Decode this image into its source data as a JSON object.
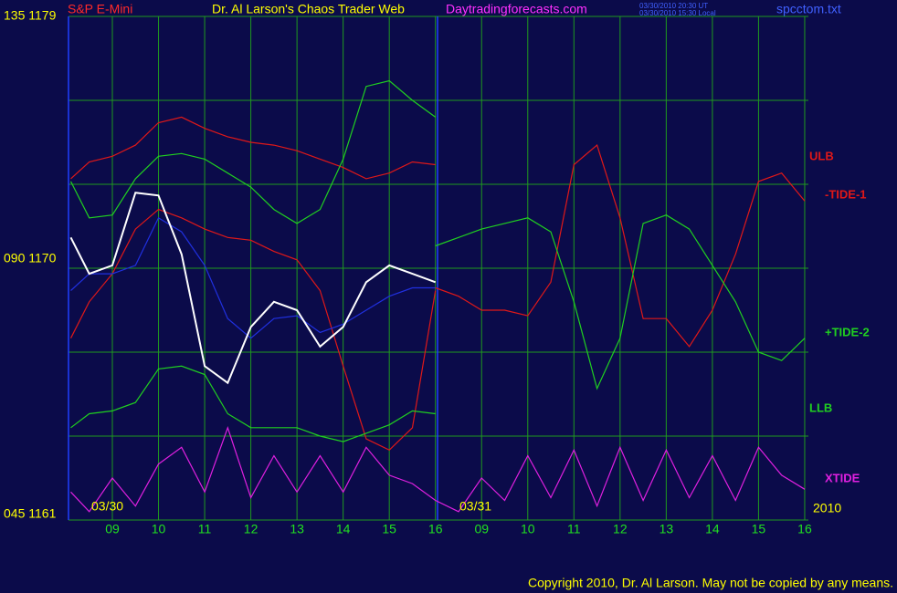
{
  "chart_data": {
    "type": "line",
    "title": "Dr. Al Larson's Chaos Trader Web",
    "site": "Daytradingforecasts.com",
    "symbol": "S&P E-Mini",
    "file": "spcctom.txt",
    "timestamps": [
      "03/30/2010 20:30 UT",
      "03/30/2010 15:30 Local"
    ],
    "day_labels": [
      "03/30",
      "03/31",
      "2010"
    ],
    "copyright": "Copyright 2010, Dr. Al Larson. May not be copied by any means.",
    "background": "#0b0b4a",
    "grid_color": "#1f9a1f",
    "grid": true,
    "xlim": [
      0.05,
      16.08
    ],
    "xticks": [
      {
        "value": 1,
        "label": "09"
      },
      {
        "value": 2,
        "label": "10"
      },
      {
        "value": 3,
        "label": "11"
      },
      {
        "value": 4,
        "label": "12"
      },
      {
        "value": 5,
        "label": "13"
      },
      {
        "value": 6,
        "label": "14"
      },
      {
        "value": 7,
        "label": "15"
      },
      {
        "value": 8,
        "label": "16"
      },
      {
        "value": 9,
        "label": "09"
      },
      {
        "value": 10,
        "label": "10"
      },
      {
        "value": 11,
        "label": "11"
      },
      {
        "value": 12,
        "label": "12"
      },
      {
        "value": 13,
        "label": "13"
      },
      {
        "value": 14,
        "label": "14"
      },
      {
        "value": 15,
        "label": "15"
      },
      {
        "value": 16,
        "label": "16"
      }
    ],
    "ylim": [
      1161,
      1179
    ],
    "yticks": [
      {
        "value": 1179,
        "label": "135 1179"
      },
      {
        "value": 1170,
        "label": "090 1170"
      },
      {
        "value": 1161,
        "label": "045 1161"
      }
    ],
    "ygrid": [
      1164,
      1167,
      1173,
      1176
    ],
    "x": [
      0.1,
      0.5,
      1,
      1.5,
      2,
      2.5,
      3,
      3.5,
      4,
      4.5,
      5,
      5.5,
      6,
      6.5,
      7,
      7.5,
      8,
      8.5,
      9,
      9.5,
      10,
      10.5,
      11,
      11.5,
      12,
      12.5,
      13,
      13.5,
      14,
      14.5,
      15,
      15.5,
      16
    ],
    "series": [
      {
        "name": "ULB",
        "color": "#e01818",
        "values": [
          1173.2,
          1173.8,
          1174.0,
          1174.4,
          1175.2,
          1175.4,
          1175.0,
          1174.7,
          1174.5,
          1174.4,
          1174.2,
          1173.9,
          1173.6,
          1173.2,
          1173.4,
          1173.8,
          1173.7,
          null,
          null,
          null,
          null,
          null,
          null,
          null,
          null,
          null,
          null,
          null,
          null,
          null,
          null,
          null,
          null
        ]
      },
      {
        "color": "#20d020",
        "values": [
          1173.1,
          1171.8,
          1171.9,
          1173.2,
          1174.0,
          1174.1,
          1173.9,
          1173.4,
          1172.9,
          1172.1,
          1171.6,
          1172.1,
          1173.9,
          1176.5,
          1176.7,
          1176.0,
          1175.4,
          null,
          null,
          null,
          null,
          null,
          null,
          null,
          null,
          null,
          null,
          null,
          null,
          null,
          null,
          null,
          null
        ]
      },
      {
        "color": "#e01818",
        "values": [
          1167.5,
          1168.8,
          1169.8,
          1171.4,
          1172.1,
          1171.8,
          1171.4,
          1171.1,
          1171.0,
          1170.6,
          1170.3,
          1169.2,
          1166.5,
          1163.9,
          1163.5,
          1164.3,
          1169.2,
          null,
          null,
          null,
          null,
          null,
          null,
          null,
          null,
          null,
          null,
          null,
          null,
          null,
          null,
          null,
          null
        ]
      },
      {
        "name": "LLB",
        "color": "#20d020",
        "values": [
          1164.3,
          1164.8,
          1164.9,
          1165.2,
          1166.4,
          1166.5,
          1166.2,
          1164.8,
          1164.3,
          1164.3,
          1164.3,
          1164.0,
          1163.8,
          1164.1,
          1164.4,
          1164.9,
          1164.8,
          null,
          null,
          null,
          null,
          null,
          null,
          null,
          null,
          null,
          null,
          null,
          null,
          null,
          null,
          null,
          null
        ]
      },
      {
        "color": "#2030e0",
        "values": [
          1169.2,
          1169.8,
          1169.8,
          1170.1,
          1171.8,
          1171.3,
          1170.1,
          1168.2,
          1167.5,
          1168.2,
          1168.3,
          1167.7,
          1168.0,
          1168.5,
          1169.0,
          1169.3,
          1169.3,
          null,
          null,
          null,
          null,
          null,
          null,
          null,
          null,
          null,
          null,
          null,
          null,
          null,
          null,
          null,
          null
        ]
      },
      {
        "color": "#ffffff",
        "values": [
          1171.1,
          1169.8,
          1170.1,
          1172.7,
          1172.6,
          1170.5,
          1166.5,
          1165.9,
          1167.9,
          1168.8,
          1168.5,
          1167.2,
          1167.9,
          1169.5,
          1170.1,
          1169.8,
          1169.5,
          null,
          null,
          null,
          null,
          null,
          null,
          null,
          null,
          null,
          null,
          null,
          null,
          null,
          null,
          null,
          null
        ]
      },
      {
        "name": "-TIDE-1",
        "color": "#e01818",
        "values": [
          null,
          null,
          null,
          null,
          null,
          null,
          null,
          null,
          null,
          null,
          null,
          null,
          null,
          null,
          null,
          null,
          1169.3,
          1169.0,
          1168.5,
          1168.5,
          1168.3,
          1169.5,
          1173.7,
          1174.4,
          1171.8,
          1168.2,
          1168.2,
          1167.2,
          1168.5,
          1170.5,
          1173.1,
          1173.4,
          1172.4
        ]
      },
      {
        "name": "+TIDE-2",
        "color": "#20d020",
        "values": [
          null,
          null,
          null,
          null,
          null,
          null,
          null,
          null,
          null,
          null,
          null,
          null,
          null,
          null,
          null,
          null,
          1170.8,
          1171.1,
          1171.4,
          1171.6,
          1171.8,
          1171.3,
          1168.8,
          1165.7,
          1167.5,
          1171.6,
          1171.9,
          1171.4,
          1170.1,
          1168.8,
          1167.0,
          1166.7,
          1167.5
        ]
      },
      {
        "name": "XTIDE",
        "color": "#e020e0",
        "values": [
          1162.0,
          1161.3,
          1162.5,
          1161.5,
          1163.0,
          1163.6,
          1162.0,
          1164.3,
          1161.8,
          1163.3,
          1162.0,
          1163.3,
          1162.0,
          1163.6,
          1162.6,
          1162.3,
          1161.7,
          1161.3,
          1162.5,
          1161.7,
          1163.3,
          1161.8,
          1163.5,
          1161.5,
          1163.6,
          1161.7,
          1163.5,
          1161.8,
          1163.3,
          1161.7,
          1163.6,
          1162.6,
          1162.1
        ]
      }
    ]
  }
}
